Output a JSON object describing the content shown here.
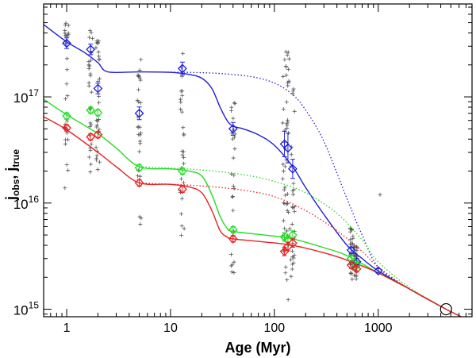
{
  "chart_data": {
    "type": "scatter",
    "title": "",
    "xlabel": "Age (Myr)",
    "ylabel_main": "j",
    "ylabel_sub1": "obs",
    "ylabel_sep": ", j",
    "ylabel_sub2": "true",
    "xscale": "log",
    "yscale": "log",
    "xlim": [
      0.6,
      8000
    ],
    "ylim": [
      850000000000000.0,
      7.5e+17
    ],
    "grid": false,
    "xticks": [
      {
        "value": 1,
        "label": "1"
      },
      {
        "value": 10,
        "label": "10"
      },
      {
        "value": 100,
        "label": "100"
      },
      {
        "value": 1000,
        "label": "1000"
      }
    ],
    "yticks": [
      {
        "value": 1000000000000000.0,
        "base": "10",
        "exp": "15"
      },
      {
        "value": 1e+16,
        "base": "10",
        "exp": "16"
      },
      {
        "value": 1e+17,
        "base": "10",
        "exp": "17"
      }
    ],
    "colors": {
      "blue": "#1f1fd6",
      "green": "#22dd22",
      "red": "#e82020",
      "gray": "#555555",
      "axis": "#000000"
    },
    "clusters": [
      {
        "age": 1,
        "ymin": 1.3e+16,
        "ymax": 5e+17
      },
      {
        "age": 1.7,
        "ymin": 1.8e+16,
        "ymax": 5e+17
      },
      {
        "age": 2,
        "ymin": 1.8e+16,
        "ymax": 4.5e+17
      },
      {
        "age": 5,
        "ymin": 5500000000000000.0,
        "ymax": 2.3e+17
      },
      {
        "age": 13,
        "ymin": 4800000000000000.0,
        "ymax": 3e+17
      },
      {
        "age": 40,
        "ymin": 1800000000000000.0,
        "ymax": 1.1e+17
      },
      {
        "age": 125,
        "ymin": 1700000000000000.0,
        "ymax": 2.8e+17
      },
      {
        "age": 135,
        "ymin": 1100000000000000.0,
        "ymax": 2.8e+17
      },
      {
        "age": 150,
        "ymin": 2000000000000000.0,
        "ymax": 1.3e+17
      },
      {
        "age": 550,
        "ymin": 1900000000000000.0,
        "ymax": 6000000000000000.0
      },
      {
        "age": 600,
        "ymin": 1900000000000000.0,
        "ymax": 4000000000000000.0
      },
      {
        "age": 1000,
        "ymin": 1.2e+16,
        "ymax": 1.2e+16
      }
    ],
    "series": [
      {
        "name": "blue",
        "color": "#1f1fd6",
        "points": [
          {
            "x": 1,
            "y": 3.2e+17,
            "err": 0.05
          },
          {
            "x": 1.7,
            "y": 2.8e+17,
            "err": 0.05
          },
          {
            "x": 2,
            "y": 1.2e+17,
            "err": 0.05
          },
          {
            "x": 5,
            "y": 7e+16,
            "err": 0.06
          },
          {
            "x": 13,
            "y": 1.85e+17,
            "err": 0.06
          },
          {
            "x": 40,
            "y": 5e+16,
            "err": 0.06
          },
          {
            "x": 125,
            "y": 3.6e+16,
            "err": 0.12
          },
          {
            "x": 135,
            "y": 3.3e+16,
            "err": 0.14
          },
          {
            "x": 150,
            "y": 2.1e+16,
            "err": 0.09
          },
          {
            "x": 550,
            "y": 3600000000000000.0,
            "err": 0.03
          },
          {
            "x": 620,
            "y": 2800000000000000.0,
            "err": 0.03
          },
          {
            "x": 1000,
            "y": 2300000000000000.0,
            "err": 0.02
          }
        ],
        "solid": [
          [
            0.6,
            4.8e+17
          ],
          [
            1,
            3.3e+17
          ],
          [
            1.5,
            2.6e+17
          ],
          [
            2,
            2.1e+17
          ],
          [
            2.5,
            1.72e+17
          ],
          [
            5,
            1.72e+17
          ],
          [
            10,
            1.7e+17
          ],
          [
            15,
            1.63e+17
          ],
          [
            20,
            1.5e+17
          ],
          [
            25,
            1.2e+17
          ],
          [
            30,
            8e+16
          ],
          [
            35,
            6e+16
          ],
          [
            40,
            5.3e+16
          ],
          [
            50,
            5e+16
          ],
          [
            70,
            4.4e+16
          ],
          [
            100,
            3.5e+16
          ],
          [
            150,
            2.2e+16
          ],
          [
            200,
            1.4e+16
          ],
          [
            300,
            7800000000000000.0
          ],
          [
            500,
            4000000000000000.0
          ],
          [
            700,
            3000000000000000.0
          ],
          [
            1000,
            2300000000000000.0
          ],
          [
            2000,
            1550000000000000.0
          ],
          [
            4500,
            1000000000000000.0
          ],
          [
            8000,
            760000000000000.0
          ]
        ],
        "dotted": [
          [
            5,
            1.72e+17
          ],
          [
            15,
            1.7e+17
          ],
          [
            30,
            1.66e+17
          ],
          [
            60,
            1.55e+17
          ],
          [
            100,
            1.35e+17
          ],
          [
            150,
            1.05e+17
          ],
          [
            200,
            7.5e+16
          ],
          [
            300,
            3.8e+16
          ],
          [
            500,
            1.1e+16
          ],
          [
            700,
            5000000000000000.0
          ],
          [
            1000,
            2500000000000000.0
          ],
          [
            2000,
            1550000000000000.0
          ],
          [
            4500,
            1000000000000000.0
          ]
        ]
      },
      {
        "name": "green",
        "color": "#22dd22",
        "points": [
          {
            "x": 1,
            "y": 6.6e+16,
            "err": 0.03
          },
          {
            "x": 1.7,
            "y": 7.5e+16,
            "err": 0.03
          },
          {
            "x": 2,
            "y": 7.1e+16,
            "err": 0.03
          },
          {
            "x": 5,
            "y": 2.15e+16,
            "err": 0.03
          },
          {
            "x": 13,
            "y": 2e+16,
            "err": 0.03
          },
          {
            "x": 40,
            "y": 5600000000000000.0,
            "err": 0.03
          },
          {
            "x": 125,
            "y": 4800000000000000.0,
            "err": 0.04
          },
          {
            "x": 135,
            "y": 4500000000000000.0,
            "err": 0.04
          },
          {
            "x": 150,
            "y": 5000000000000000.0,
            "err": 0.04
          },
          {
            "x": 550,
            "y": 3000000000000000.0,
            "err": 0.03
          },
          {
            "x": 620,
            "y": 2600000000000000.0,
            "err": 0.03
          }
        ],
        "solid": [
          [
            0.6,
            9.5e+16
          ],
          [
            1,
            6.8e+16
          ],
          [
            2,
            4.5e+16
          ],
          [
            3,
            3.3e+16
          ],
          [
            5,
            2.2e+16
          ],
          [
            10,
            2.1e+16
          ],
          [
            15,
            2e+16
          ],
          [
            20,
            1.8e+16
          ],
          [
            25,
            1.2e+16
          ],
          [
            30,
            7500000000000000.0
          ],
          [
            35,
            5800000000000000.0
          ],
          [
            40,
            5400000000000000.0
          ],
          [
            80,
            5000000000000000.0
          ],
          [
            150,
            4600000000000000.0
          ],
          [
            300,
            3800000000000000.0
          ],
          [
            500,
            3200000000000000.0
          ],
          [
            1000,
            2200000000000000.0
          ],
          [
            2000,
            1550000000000000.0
          ],
          [
            4500,
            1000000000000000.0
          ],
          [
            8000,
            760000000000000.0
          ]
        ],
        "dotted": [
          [
            5,
            2.2e+16
          ],
          [
            20,
            2.05e+16
          ],
          [
            50,
            1.85e+16
          ],
          [
            100,
            1.6e+16
          ],
          [
            200,
            1.25e+16
          ],
          [
            400,
            8000000000000000.0
          ],
          [
            700,
            4500000000000000.0
          ],
          [
            1000,
            2800000000000000.0
          ],
          [
            2000,
            1600000000000000.0
          ],
          [
            4500,
            1000000000000000.0
          ]
        ]
      },
      {
        "name": "red",
        "color": "#e82020",
        "points": [
          {
            "x": 1,
            "y": 5.1e+16,
            "err": 0.03
          },
          {
            "x": 1.7,
            "y": 4.2e+16,
            "err": 0.03
          },
          {
            "x": 2,
            "y": 4.4e+16,
            "err": 0.03
          },
          {
            "x": 5,
            "y": 1.55e+16,
            "err": 0.03
          },
          {
            "x": 13,
            "y": 1.35e+16,
            "err": 0.03
          },
          {
            "x": 40,
            "y": 4600000000000000.0,
            "err": 0.03
          },
          {
            "x": 125,
            "y": 3500000000000000.0,
            "err": 0.04
          },
          {
            "x": 135,
            "y": 3900000000000000.0,
            "err": 0.04
          },
          {
            "x": 150,
            "y": 4200000000000000.0,
            "err": 0.04
          },
          {
            "x": 550,
            "y": 2600000000000000.0,
            "err": 0.03
          },
          {
            "x": 620,
            "y": 2400000000000000.0,
            "err": 0.03
          }
        ],
        "solid": [
          [
            0.6,
            6.5e+16
          ],
          [
            1,
            4.9e+16
          ],
          [
            2,
            3e+16
          ],
          [
            3,
            2.2e+16
          ],
          [
            5,
            1.55e+16
          ],
          [
            10,
            1.5e+16
          ],
          [
            15,
            1.42e+16
          ],
          [
            20,
            1.25e+16
          ],
          [
            25,
            8500000000000000.0
          ],
          [
            30,
            5500000000000000.0
          ],
          [
            35,
            4800000000000000.0
          ],
          [
            40,
            4600000000000000.0
          ],
          [
            80,
            4300000000000000.0
          ],
          [
            150,
            4000000000000000.0
          ],
          [
            300,
            3400000000000000.0
          ],
          [
            500,
            2900000000000000.0
          ],
          [
            1000,
            2200000000000000.0
          ],
          [
            2000,
            1550000000000000.0
          ],
          [
            4500,
            1000000000000000.0
          ],
          [
            8000,
            760000000000000.0
          ]
        ],
        "dotted": [
          [
            5,
            1.55e+16
          ],
          [
            20,
            1.45e+16
          ],
          [
            50,
            1.32e+16
          ],
          [
            100,
            1.15e+16
          ],
          [
            200,
            8500000000000000.0
          ],
          [
            400,
            5500000000000000.0
          ],
          [
            700,
            3500000000000000.0
          ],
          [
            1000,
            2500000000000000.0
          ],
          [
            2000,
            1550000000000000.0
          ],
          [
            4500,
            1000000000000000.0
          ]
        ]
      }
    ],
    "marker_circle": {
      "x": 4500,
      "y": 1000000000000000.0
    }
  }
}
